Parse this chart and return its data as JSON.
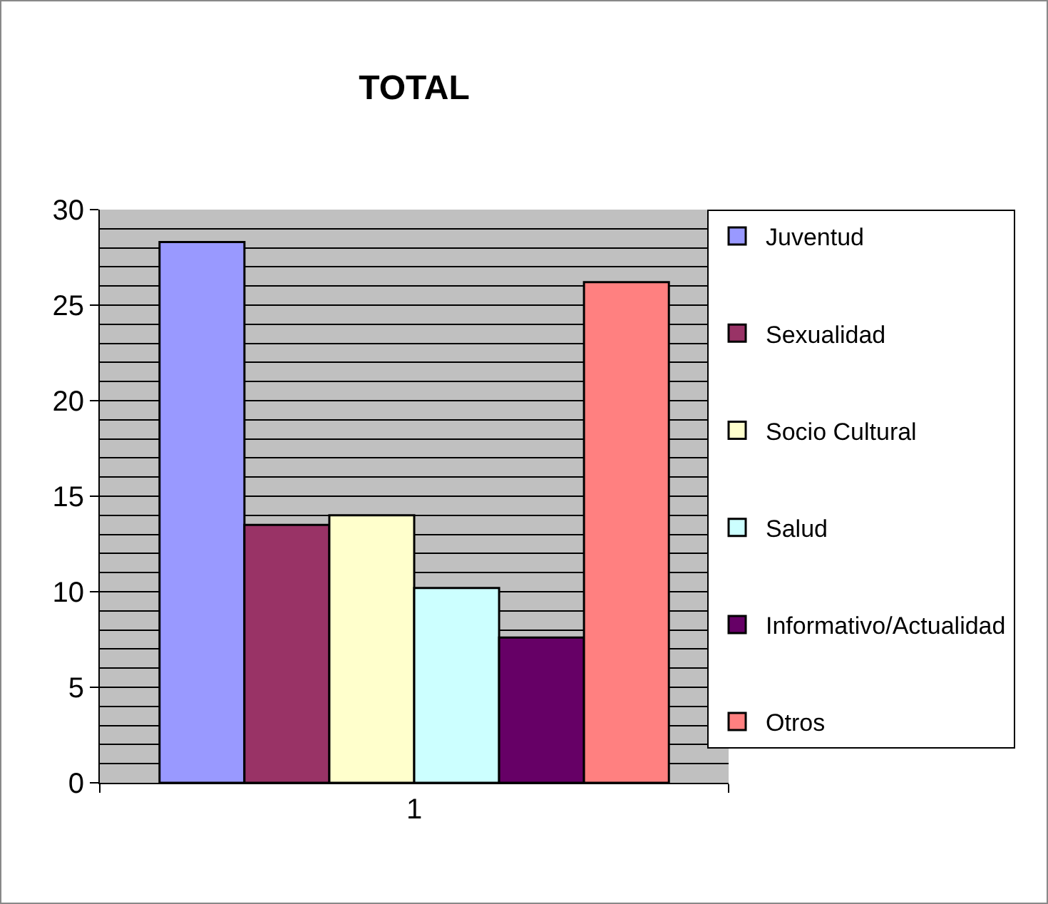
{
  "chart_data": {
    "type": "bar",
    "title": "TOTAL",
    "categories": [
      "1"
    ],
    "series": [
      {
        "name": "Juventud",
        "color": "#9999ff",
        "values": [
          28.3
        ]
      },
      {
        "name": "Sexualidad",
        "color": "#993366",
        "values": [
          13.5
        ]
      },
      {
        "name": "Socio Cultural",
        "color": "#ffffcc",
        "values": [
          14.0
        ]
      },
      {
        "name": "Salud",
        "color": "#ccffff",
        "values": [
          10.2
        ]
      },
      {
        "name": "Informativo/Actualidad",
        "color": "#660066",
        "values": [
          7.6
        ]
      },
      {
        "name": "Otros",
        "color": "#ff8080",
        "values": [
          26.2
        ]
      }
    ],
    "ylim": [
      0,
      30
    ],
    "yticks": [
      0,
      5,
      10,
      15,
      20,
      25,
      30
    ],
    "grid": true,
    "legend": "right"
  }
}
